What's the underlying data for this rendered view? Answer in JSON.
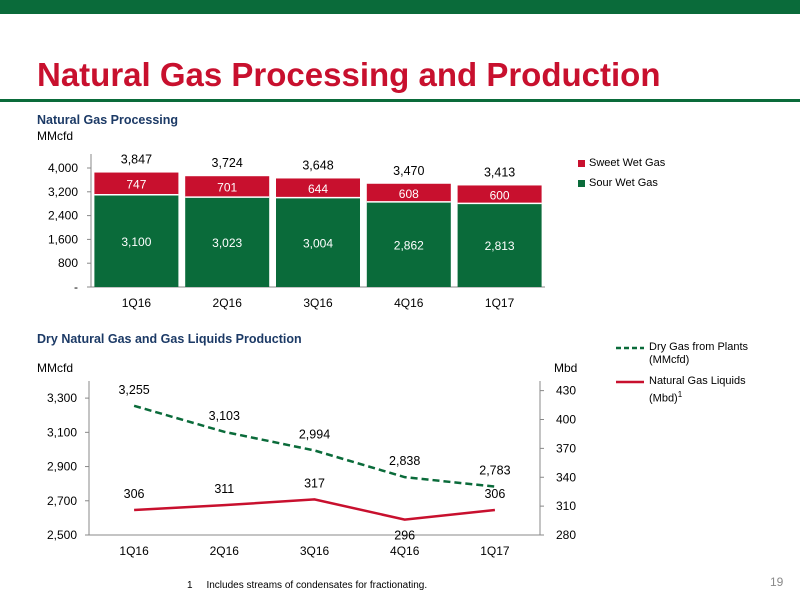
{
  "page": {
    "title": "Natural Gas Processing and Production",
    "page_number": "19",
    "footnote_marker": "1",
    "footnote_text": "Includes streams of condensates for fractionating.",
    "colors": {
      "brand_green": "#0a6b3a",
      "brand_red": "#c8102e",
      "title_blue": "#1c3a66"
    }
  },
  "chart_data": [
    {
      "type": "bar",
      "stacked": true,
      "title": "Natural Gas Processing",
      "ylabel": "MMcfd",
      "categories": [
        "1Q16",
        "2Q16",
        "3Q16",
        "4Q16",
        "1Q17"
      ],
      "series": [
        {
          "name": "Sour Wet Gas",
          "color": "#0a6b3a",
          "values": [
            3100,
            3023,
            3004,
            2862,
            2813
          ],
          "labels": [
            "3,100",
            "3,023",
            "3,004",
            "2,862",
            "2,813"
          ]
        },
        {
          "name": "Sweet Wet Gas",
          "color": "#c8102e",
          "values": [
            747,
            701,
            644,
            608,
            600
          ],
          "labels": [
            "747",
            "701",
            "644",
            "608",
            "600"
          ]
        }
      ],
      "totals": [
        3847,
        3724,
        3648,
        3470,
        3413
      ],
      "total_labels": [
        "3,847",
        "3,724",
        "3,648",
        "3,470",
        "3,413"
      ],
      "ylim": [
        0,
        4000
      ],
      "yticks": [
        0,
        800,
        1600,
        2400,
        3200,
        4000
      ],
      "ytick_labels": [
        "-",
        "800",
        "1,600",
        "2,400",
        "3,200",
        "4,000"
      ],
      "legend_order": [
        "Sweet Wet Gas",
        "Sour Wet Gas"
      ],
      "legend_position": "right"
    },
    {
      "type": "line",
      "title": "Dry Natural Gas and Gas Liquids Production",
      "categories": [
        "1Q16",
        "2Q16",
        "3Q16",
        "4Q16",
        "1Q17"
      ],
      "left_axis": {
        "label": "MMcfd",
        "range": [
          2500,
          3400
        ],
        "ticks": [
          2500,
          2700,
          2900,
          3100,
          3300
        ],
        "tick_labels": [
          "2,500",
          "2,700",
          "2,900",
          "3,100",
          "3,300"
        ]
      },
      "right_axis": {
        "label": "Mbd",
        "range": [
          280,
          440
        ],
        "ticks": [
          280,
          310,
          340,
          370,
          400,
          430
        ],
        "tick_labels": [
          "280",
          "310",
          "340",
          "370",
          "400",
          "430"
        ]
      },
      "series": [
        {
          "name": "Dry Gas from Plants (MMcfd)",
          "legend_lines": [
            "Dry Gas from Plants",
            "(MMcfd)"
          ],
          "axis": "left",
          "style": "dashed",
          "color": "#0a6b3a",
          "values": [
            3255,
            3103,
            2994,
            2838,
            2783
          ],
          "labels": [
            "3,255",
            "3,103",
            "2,994",
            "2,838",
            "2,783"
          ]
        },
        {
          "name": "Natural Gas Liquids (Mbd)",
          "legend_lines": [
            "Natural Gas Liquids",
            "(Mbd)"
          ],
          "legend_superscript": "1",
          "axis": "right",
          "style": "solid",
          "color": "#c8102e",
          "values": [
            306,
            311,
            317,
            296,
            306
          ],
          "labels": [
            "306",
            "311",
            "317",
            "296",
            "306"
          ]
        }
      ],
      "legend_position": "right"
    }
  ]
}
